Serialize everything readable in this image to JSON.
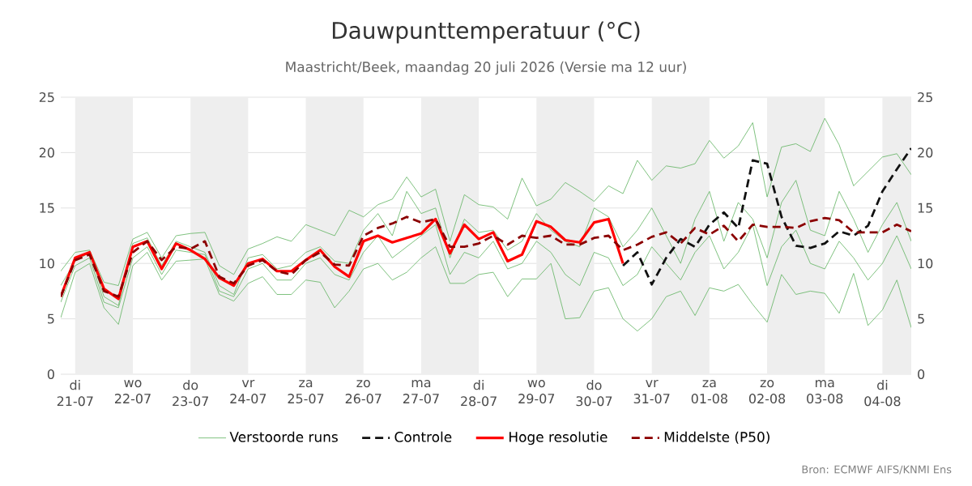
{
  "chart_data": {
    "type": "line",
    "title": "Dauwpunttemperatuur (°C)",
    "subtitle": "Maastricht/Beek, maandag 20 juli 2026 (Versie ma 12 uur)",
    "x": [
      "2026-07-20T18:00",
      "2026-07-21T00:00",
      "2026-07-21T06:00",
      "2026-07-21T12:00",
      "2026-07-21T18:00",
      "2026-07-22T00:00",
      "2026-07-22T06:00",
      "2026-07-22T12:00",
      "2026-07-22T18:00",
      "2026-07-23T00:00",
      "2026-07-23T06:00",
      "2026-07-23T12:00",
      "2026-07-23T18:00",
      "2026-07-24T00:00",
      "2026-07-24T06:00",
      "2026-07-24T12:00",
      "2026-07-24T18:00",
      "2026-07-25T00:00",
      "2026-07-25T06:00",
      "2026-07-25T12:00",
      "2026-07-25T18:00",
      "2026-07-26T00:00",
      "2026-07-26T06:00",
      "2026-07-26T12:00",
      "2026-07-26T18:00",
      "2026-07-27T00:00",
      "2026-07-27T06:00",
      "2026-07-27T12:00",
      "2026-07-27T18:00",
      "2026-07-28T00:00",
      "2026-07-28T06:00",
      "2026-07-28T12:00",
      "2026-07-28T18:00",
      "2026-07-29T00:00",
      "2026-07-29T06:00",
      "2026-07-29T12:00",
      "2026-07-29T18:00",
      "2026-07-30T00:00",
      "2026-07-30T06:00",
      "2026-07-30T12:00",
      "2026-07-30T18:00",
      "2026-07-31T00:00",
      "2026-07-31T06:00",
      "2026-07-31T12:00",
      "2026-07-31T18:00",
      "2026-08-01T00:00",
      "2026-08-01T06:00",
      "2026-08-01T12:00",
      "2026-08-01T18:00",
      "2026-08-02T00:00",
      "2026-08-02T06:00",
      "2026-08-02T12:00",
      "2026-08-02T18:00",
      "2026-08-03T00:00",
      "2026-08-03T06:00",
      "2026-08-03T12:00",
      "2026-08-03T18:00",
      "2026-08-04T00:00",
      "2026-08-04T06:00",
      "2026-08-04T12:00"
    ],
    "series": [
      {
        "name": "Verstoorde runs",
        "color": "#5fb35f",
        "values": [
          9.3,
          11,
          11.2,
          8.3,
          8,
          12.2,
          12.8,
          10.5,
          12.5,
          12.7,
          12.8,
          9.8,
          9,
          11.3,
          11.8,
          12.4,
          12,
          13.5,
          13,
          12.5,
          14.8,
          14.2,
          15.3,
          15.8,
          17.8,
          16,
          16.7,
          12,
          16.2,
          15.3,
          15.1,
          14,
          17.7,
          15.2,
          15.8,
          17.3,
          16.5,
          15.6,
          17,
          16.3,
          19.3,
          17.5,
          18.8,
          18.6,
          19,
          21.1,
          19.5,
          20.6,
          22.7,
          16,
          20.5,
          20.8,
          20.1,
          23.1,
          20.7,
          17,
          18.3,
          19.6,
          19.9,
          18
        ]
      },
      {
        "color": "#5fb35f",
        "values": [
          5.1,
          9.2,
          10,
          6,
          4.5,
          9.8,
          11,
          8.5,
          10.2,
          10.3,
          10.4,
          7.2,
          6.6,
          8.2,
          8.8,
          7.2,
          7.2,
          8.5,
          8.3,
          6,
          7.5,
          9.5,
          10,
          8.5,
          9.2,
          10.5,
          11.5,
          8.2,
          8.2,
          9,
          9.2,
          7,
          8.6,
          8.6,
          10,
          5,
          5.1,
          7.5,
          7.8,
          5,
          3.9,
          5,
          7,
          7.5,
          5.3,
          7.8,
          7.5,
          8.1,
          6.3,
          4.7,
          9,
          7.2,
          7.5,
          7.3,
          5.5,
          9.1,
          4.4,
          5.8,
          8.5,
          4.2
        ]
      },
      {
        "color": "#5fb35f",
        "values": [
          8,
          10.2,
          11,
          7,
          6.2,
          11.8,
          12.3,
          9.8,
          12,
          11.5,
          11,
          8,
          7.2,
          10.5,
          10.8,
          9.5,
          9.8,
          11,
          11.5,
          10.2,
          10,
          13,
          14.5,
          12.5,
          16.5,
          14.5,
          15,
          10.5,
          14,
          12.8,
          13,
          11.2,
          12,
          14.5,
          13,
          12,
          11.5,
          15,
          14.2,
          11.5,
          13,
          15,
          12.5,
          10,
          14,
          16.5,
          12,
          15.5,
          14,
          10.5,
          15.5,
          17.5,
          13,
          12.5,
          16.5,
          14,
          11,
          13.5,
          15.5,
          12
        ]
      },
      {
        "color": "#5fb35f",
        "values": [
          6.5,
          9.8,
          10.5,
          6.5,
          6,
          10.5,
          11.5,
          9,
          11.2,
          11,
          10.8,
          7.5,
          7,
          9.5,
          10,
          8.5,
          8.5,
          10,
          10.5,
          9,
          8.5,
          11,
          12.5,
          10.5,
          11.5,
          12.5,
          13.5,
          9,
          11,
          10.5,
          12,
          9.5,
          10,
          12,
          11,
          9,
          8,
          11,
          10.5,
          8,
          9,
          11.5,
          10,
          8.5,
          11,
          12.5,
          9.5,
          11,
          13.5,
          8,
          11.5,
          13,
          10,
          9.5,
          12,
          10.5,
          8.5,
          10,
          12.5,
          9.5
        ]
      },
      {
        "name": "Controle",
        "color": "#111111",
        "line_style": "dashed",
        "values": [
          null,
          null,
          null,
          null,
          null,
          null,
          null,
          null,
          null,
          null,
          null,
          null,
          null,
          null,
          null,
          null,
          null,
          null,
          null,
          null,
          null,
          null,
          null,
          null,
          null,
          null,
          null,
          null,
          null,
          null,
          null,
          null,
          null,
          null,
          null,
          null,
          null,
          null,
          null,
          9.8,
          11,
          8.1,
          10.5,
          12.2,
          11.5,
          13.5,
          14.6,
          13.2,
          19.3,
          19,
          14.2,
          11.6,
          11.4,
          11.8,
          12.9,
          12.5,
          13.4,
          16.5,
          18.5,
          20.4
        ]
      },
      {
        "name": "Hoge resolutie",
        "color": "#ff0000",
        "values": [
          7,
          10.5,
          11,
          7.7,
          6.8,
          11.5,
          12,
          9.5,
          11.8,
          11.2,
          10.4,
          8.7,
          8,
          10,
          10.4,
          9.3,
          9.3,
          10.3,
          11.2,
          9.7,
          8.8,
          12,
          12.5,
          11.9,
          12.3,
          12.7,
          14,
          10.9,
          13.5,
          12.2,
          12.8,
          10.2,
          10.8,
          13.8,
          13.3,
          12.1,
          11.9,
          13.7,
          14,
          10,
          null,
          null,
          null,
          null,
          null,
          null,
          null,
          null,
          null,
          null,
          null,
          null,
          null,
          null,
          null,
          null,
          null,
          null,
          null,
          null
        ]
      },
      {
        "name": "Middelste (P50)",
        "color": "#8b0000",
        "line_style": "dashed",
        "values": [
          7,
          10.3,
          10.8,
          7.5,
          7,
          11,
          12,
          10.3,
          11.5,
          11.3,
          12,
          8.8,
          8.2,
          9.8,
          10.3,
          9.3,
          9,
          10.3,
          11,
          9.9,
          9.8,
          12.5,
          13.2,
          13.6,
          14.2,
          13.7,
          14,
          11.5,
          11.5,
          11.8,
          12.5,
          11.7,
          12.5,
          12.3,
          12.5,
          11.7,
          11.7,
          12.3,
          12.5,
          11.2,
          11.7,
          12.4,
          12.8,
          11.8,
          13.2,
          12.6,
          13.4,
          12,
          13.5,
          13.3,
          13.3,
          13.2,
          13.8,
          14.1,
          13.9,
          12.8,
          12.8,
          12.8,
          13.5,
          12.9
        ]
      }
    ],
    "xlim": [
      "2026-07-20T18:00",
      "2026-08-04T12:00"
    ],
    "xticks": [
      {
        "value": "2026-07-21",
        "label": "di 21-07"
      },
      {
        "value": "2026-07-22",
        "label": "wo 22-07"
      },
      {
        "value": "2026-07-23",
        "label": "do 23-07"
      },
      {
        "value": "2026-07-24",
        "label": "vr 24-07"
      },
      {
        "value": "2026-07-25",
        "label": "za 25-07"
      },
      {
        "value": "2026-07-26",
        "label": "zo 26-07"
      },
      {
        "value": "2026-07-27",
        "label": "ma 27-07"
      },
      {
        "value": "2026-07-28",
        "label": "di 28-07"
      },
      {
        "value": "2026-07-29",
        "label": "wo 29-07"
      },
      {
        "value": "2026-07-30",
        "label": "do 30-07"
      },
      {
        "value": "2026-07-31",
        "label": "vr 31-07"
      },
      {
        "value": "2026-08-01",
        "label": "za 01-08"
      },
      {
        "value": "2026-08-02",
        "label": "zo 02-08"
      },
      {
        "value": "2026-08-03",
        "label": "ma 03-08"
      },
      {
        "value": "2026-08-04",
        "label": "di 04-08"
      }
    ],
    "ylim": [
      0,
      25
    ],
    "yticks": [
      0,
      5,
      10,
      15,
      20,
      25
    ],
    "y2lim": [
      0,
      25
    ],
    "y2ticks": [
      0,
      5,
      10,
      15,
      20,
      25
    ],
    "bands": [
      {
        "axis": "x",
        "from": "2026-07-21",
        "to": "2026-07-22",
        "color": "#eeeeee"
      },
      {
        "axis": "x",
        "from": "2026-07-23",
        "to": "2026-07-24",
        "color": "#eeeeee"
      },
      {
        "axis": "x",
        "from": "2026-07-25",
        "to": "2026-07-26",
        "color": "#eeeeee"
      },
      {
        "axis": "x",
        "from": "2026-07-27",
        "to": "2026-07-28",
        "color": "#eeeeee"
      },
      {
        "axis": "x",
        "from": "2026-07-29",
        "to": "2026-07-30",
        "color": "#eeeeee"
      },
      {
        "axis": "x",
        "from": "2026-07-31",
        "to": "2026-08-01",
        "color": "#eeeeee"
      },
      {
        "axis": "x",
        "from": "2026-08-02",
        "to": "2026-08-03",
        "color": "#eeeeee"
      },
      {
        "axis": "x",
        "from": "2026-08-04",
        "to": "2026-08-04T12:00",
        "color": "#eeeeee"
      }
    ],
    "grid": "y",
    "legend": "bottom",
    "annotations": [
      "Bron: ECMWF AIFS/KNMI Ens"
    ]
  }
}
